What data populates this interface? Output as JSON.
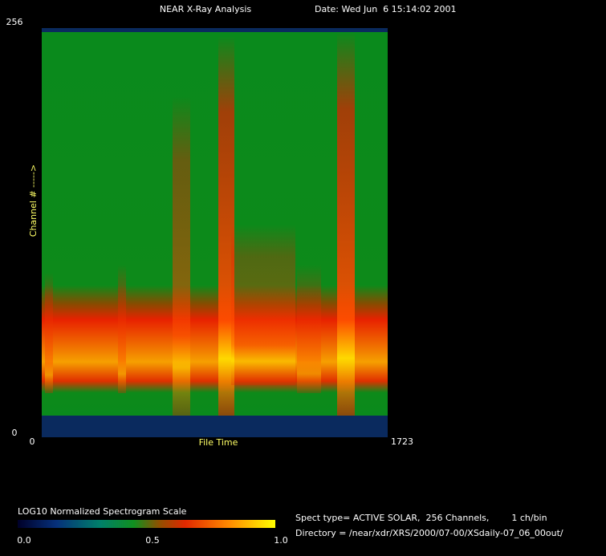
{
  "chart_data": {
    "type": "heatmap",
    "title": "NEAR X-Ray Analysis",
    "subtitle": "Date: Wed Jun  6 15:14:02 2001",
    "x_label": "File Time",
    "y_label": "Channel # ----->",
    "xlim": [
      0,
      1723
    ],
    "xticks": [
      0,
      1723
    ],
    "ylim": [
      0,
      256
    ],
    "yticks": [
      0,
      256
    ],
    "colorbar": {
      "title": "LOG10 Normalized Spectrogram Scale",
      "lim": [
        0,
        1
      ],
      "ticks": [
        {
          "value": 0,
          "label": "0.0"
        },
        {
          "value": 0.5,
          "label": "0.5"
        },
        {
          "value": 1,
          "label": "1.0"
        }
      ]
    },
    "info": [
      "Spect type= ACTIVE SOLAR,  256 Channels,        1 ch/bin",
      "Directory = /near/xdr/XRS/2000/07-00/XSdaily-07_06_00out/"
    ]
  }
}
